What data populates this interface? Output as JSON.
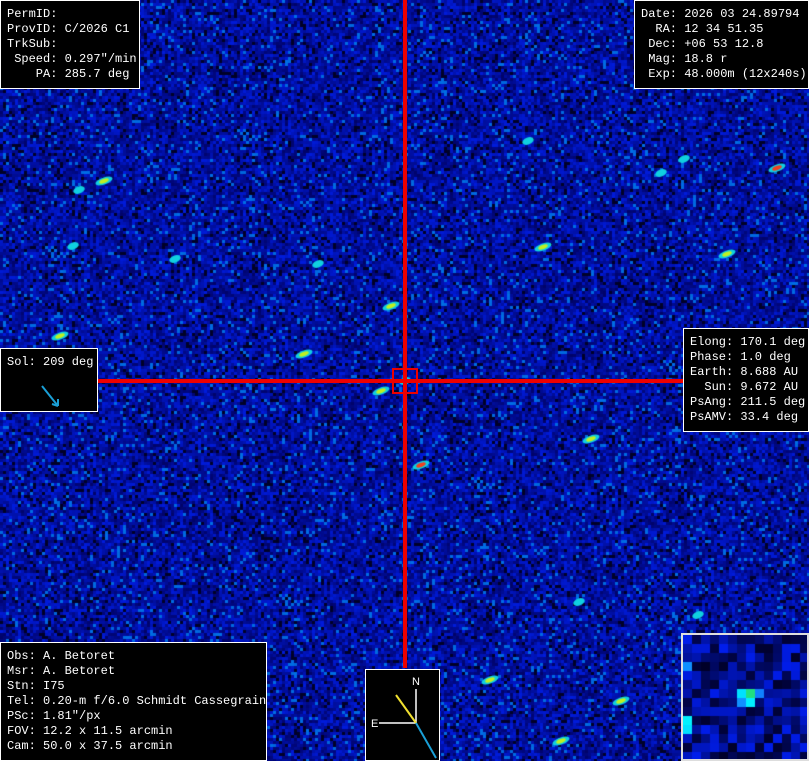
{
  "image": {
    "background_color": "#0a1a9a",
    "crosshair_color": "#e00000"
  },
  "top_left": {
    "lines": [
      "PermID:",
      "ProvID: C/2026 C1",
      "TrkSub:",
      " Speed: 0.297\"/min",
      "    PA: 285.7 deg"
    ]
  },
  "top_right": {
    "lines": [
      "Date: 2026 03 24.89794",
      "  RA: 12 34 51.35",
      " Dec: +06 53 12.8",
      " Mag: 18.8 r",
      " Exp: 48.000m (12x240s)"
    ]
  },
  "sol": {
    "text": "Sol: 209 deg",
    "arrow_icon": "sun-direction-arrow",
    "arrow_color": "#1a9fd6"
  },
  "right_info": {
    "lines": [
      "Elong: 170.1 deg",
      "Phase: 1.0 deg",
      "Earth: 8.688 AU",
      "  Sun: 9.672 AU",
      "PsAng: 211.5 deg",
      "PsAMV: 33.4 deg"
    ]
  },
  "bottom_left": {
    "lines": [
      "Obs: A. Betoret",
      "Msr: A. Betoret",
      "Stn: I75",
      "Tel: 0.20-m f/6.0 Schmidt Cassegrain",
      "PSc: 1.81\"/px",
      "FOV: 12.2 x 11.5 arcmin",
      "Cam: 50.0 x 37.5 arcmin"
    ]
  },
  "compass": {
    "north": "N",
    "east": "E",
    "motion_color": "#f0e030",
    "sun_color": "#1a9fd6"
  }
}
